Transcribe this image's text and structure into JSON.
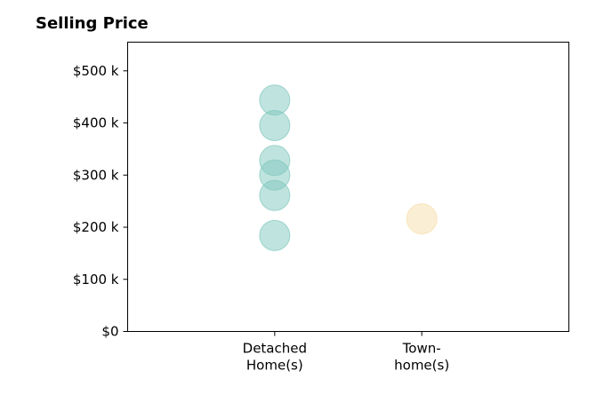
{
  "chart_data": {
    "type": "scatter",
    "title": "Selling Price",
    "xlabel": "",
    "ylabel": "",
    "categories": [
      [
        "Detached",
        "Home(s)"
      ],
      [
        "Town-",
        "home(s)"
      ]
    ],
    "y_tick_labels": [
      "$0",
      "$100 k",
      "$200 k",
      "$300 k",
      "$400 k",
      "$500 k"
    ],
    "y_ticks": [
      0,
      100000,
      200000,
      300000,
      400000,
      500000
    ],
    "ylim": [
      0,
      555000
    ],
    "xlim": [
      -1,
      2
    ],
    "grid": false,
    "colors": {
      "Detached Home(s)": "#7fc7bd",
      "Town-home(s)": "#f5deaa"
    },
    "points": [
      {
        "category": 0,
        "value": 444000
      },
      {
        "category": 0,
        "value": 395000
      },
      {
        "category": 0,
        "value": 328000
      },
      {
        "category": 0,
        "value": 300000
      },
      {
        "category": 0,
        "value": 261000
      },
      {
        "category": 0,
        "value": 184000
      },
      {
        "category": 1,
        "value": 216000
      }
    ]
  }
}
